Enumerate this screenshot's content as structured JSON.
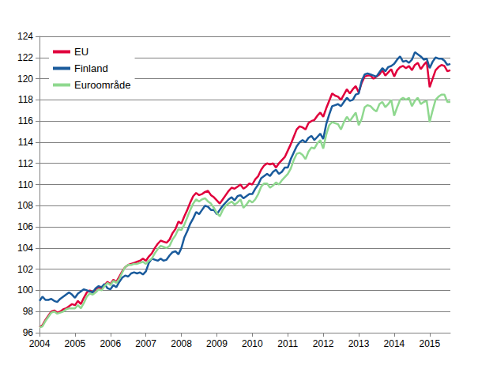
{
  "chart_data": {
    "type": "line",
    "categories": [
      "2004",
      null,
      null,
      null,
      null,
      null,
      null,
      null,
      null,
      null,
      null,
      null,
      "2005",
      null,
      null,
      null,
      null,
      null,
      null,
      null,
      null,
      null,
      null,
      null,
      "2006",
      null,
      null,
      null,
      null,
      null,
      null,
      null,
      null,
      null,
      null,
      null,
      "2007",
      null,
      null,
      null,
      null,
      null,
      null,
      null,
      null,
      null,
      null,
      null,
      "2008",
      null,
      null,
      null,
      null,
      null,
      null,
      null,
      null,
      null,
      null,
      null,
      "2009",
      null,
      null,
      null,
      null,
      null,
      null,
      null,
      null,
      null,
      null,
      null,
      "2010",
      null,
      null,
      null,
      null,
      null,
      null,
      null,
      null,
      null,
      null,
      null,
      "2011",
      null,
      null,
      null,
      null,
      null,
      null,
      null,
      null,
      null,
      null,
      null,
      "2012",
      null,
      null,
      null,
      null,
      null,
      null,
      null,
      null,
      null,
      null,
      null,
      "2013",
      null,
      null,
      null,
      null,
      null,
      null,
      null,
      null,
      null,
      null,
      null,
      "2014",
      null,
      null,
      null,
      null,
      null,
      null,
      null,
      null,
      null,
      null,
      null,
      "2015",
      null,
      null,
      null,
      null,
      null,
      null,
      null
    ],
    "series": [
      {
        "name": "EU",
        "color": "#e0003c",
        "values": [
          96.5,
          96.7,
          97.2,
          97.6,
          98.0,
          98.1,
          97.9,
          98.0,
          98.2,
          98.3,
          98.5,
          98.7,
          98.6,
          99.0,
          98.7,
          99.3,
          99.8,
          100.0,
          99.8,
          100.1,
          100.3,
          100.2,
          100.5,
          100.8,
          100.6,
          101.0,
          100.8,
          101.3,
          101.8,
          102.2,
          102.4,
          102.5,
          102.6,
          102.7,
          102.8,
          103.0,
          102.8,
          103.2,
          103.5,
          104.0,
          104.4,
          104.7,
          104.6,
          104.5,
          104.8,
          105.4,
          105.8,
          106.5,
          106.3,
          107.0,
          107.6,
          108.3,
          108.9,
          109.2,
          109.0,
          109.1,
          109.3,
          109.4,
          109.0,
          108.8,
          108.5,
          108.2,
          108.6,
          109.0,
          109.4,
          109.7,
          109.6,
          109.8,
          110.0,
          109.6,
          109.8,
          110.1,
          110.0,
          110.5,
          110.8,
          111.4,
          111.8,
          112.0,
          111.9,
          112.0,
          111.6,
          112.0,
          112.3,
          112.6,
          113.2,
          113.8,
          114.5,
          115.2,
          115.5,
          115.4,
          115.2,
          115.8,
          116.0,
          116.1,
          116.5,
          116.8,
          116.4,
          117.2,
          117.9,
          118.6,
          118.4,
          118.3,
          118.0,
          118.5,
          119.0,
          118.6,
          119.0,
          119.3,
          118.7,
          119.6,
          120.2,
          120.3,
          120.3,
          120.0,
          120.2,
          120.4,
          120.8,
          120.3,
          120.6,
          120.9,
          120.2,
          120.8,
          121.1,
          121.2,
          121.0,
          121.2,
          120.8,
          121.3,
          121.5,
          120.9,
          121.3,
          121.6,
          119.2,
          120.0,
          120.8,
          121.1,
          121.3,
          121.2,
          120.7,
          120.8
        ]
      },
      {
        "name": "Finland",
        "color": "#1a5b9c",
        "values": [
          99.0,
          99.4,
          99.1,
          99.1,
          99.2,
          99.0,
          98.9,
          99.2,
          99.4,
          99.6,
          99.8,
          99.6,
          99.3,
          99.7,
          99.9,
          100.1,
          100.0,
          99.9,
          99.8,
          100.2,
          100.4,
          100.3,
          100.6,
          100.2,
          100.1,
          100.5,
          100.3,
          100.8,
          101.2,
          101.4,
          101.3,
          101.6,
          101.7,
          101.6,
          101.7,
          101.5,
          101.8,
          102.6,
          103.0,
          102.9,
          102.8,
          103.0,
          102.8,
          102.9,
          103.3,
          103.6,
          103.7,
          103.4,
          104.0,
          105.0,
          105.6,
          106.3,
          106.8,
          107.4,
          107.2,
          107.6,
          108.0,
          107.9,
          107.6,
          107.6,
          107.2,
          107.6,
          108.0,
          108.3,
          108.6,
          108.8,
          108.5,
          108.9,
          109.0,
          108.7,
          108.9,
          109.1,
          109.1,
          109.6,
          110.0,
          110.6,
          110.8,
          111.0,
          110.8,
          111.2,
          111.4,
          111.0,
          111.2,
          111.6,
          111.6,
          112.4,
          113.0,
          113.6,
          114.0,
          114.2,
          114.0,
          114.4,
          114.6,
          114.2,
          114.5,
          114.8,
          114.3,
          115.7,
          116.6,
          117.4,
          117.5,
          117.6,
          117.4,
          117.8,
          118.2,
          117.9,
          118.0,
          118.5,
          118.6,
          119.8,
          120.4,
          120.5,
          120.4,
          120.3,
          120.2,
          120.6,
          121.0,
          120.7,
          121.1,
          121.2,
          121.4,
          121.8,
          122.1,
          121.6,
          121.7,
          121.5,
          121.8,
          122.5,
          122.3,
          122.1,
          121.8,
          121.9,
          121.0,
          121.6,
          122.0,
          121.9,
          121.9,
          121.7,
          121.3,
          121.4
        ]
      },
      {
        "name": "Euroområde",
        "color": "#8fd88f",
        "values": [
          96.5,
          96.6,
          97.1,
          97.5,
          97.9,
          98.0,
          97.8,
          97.9,
          98.0,
          98.2,
          98.3,
          98.3,
          98.3,
          98.6,
          98.3,
          98.8,
          99.4,
          99.7,
          99.6,
          99.8,
          100.1,
          100.0,
          100.4,
          100.7,
          100.5,
          100.9,
          100.7,
          101.1,
          101.7,
          102.2,
          102.4,
          102.4,
          102.5,
          102.5,
          102.6,
          102.7,
          102.5,
          102.8,
          103.0,
          103.5,
          103.9,
          104.2,
          104.1,
          104.0,
          104.2,
          104.8,
          105.2,
          105.8,
          105.7,
          106.2,
          106.9,
          107.6,
          108.2,
          108.6,
          108.4,
          108.6,
          108.7,
          108.4,
          108.2,
          107.8,
          107.3,
          107.0,
          107.6,
          108.0,
          108.2,
          108.4,
          108.1,
          108.3,
          108.6,
          107.8,
          108.1,
          108.5,
          108.3,
          108.6,
          109.1,
          109.8,
          110.1,
          110.1,
          109.7,
          109.9,
          110.2,
          110.0,
          110.4,
          110.7,
          111.0,
          111.5,
          112.3,
          112.9,
          113.0,
          112.8,
          112.4,
          113.1,
          113.5,
          113.4,
          113.9,
          114.2,
          113.4,
          114.7,
          115.6,
          115.9,
          115.8,
          115.7,
          115.2,
          115.9,
          116.4,
          116.0,
          116.4,
          116.8,
          115.6,
          116.2,
          117.3,
          117.5,
          117.4,
          117.1,
          116.9,
          117.6,
          117.8,
          117.3,
          117.6,
          118.0,
          116.5,
          117.3,
          118.0,
          118.2,
          118.0,
          118.2,
          117.4,
          117.9,
          118.2,
          117.6,
          117.8,
          117.9,
          115.9,
          117.0,
          118.0,
          118.3,
          118.5,
          118.5,
          117.8,
          117.8
        ]
      }
    ],
    "ylim": [
      96,
      124
    ],
    "yticks": [
      96,
      98,
      100,
      102,
      104,
      106,
      108,
      110,
      112,
      114,
      116,
      118,
      120,
      122,
      124
    ],
    "grid": true,
    "legend": "upper left"
  }
}
